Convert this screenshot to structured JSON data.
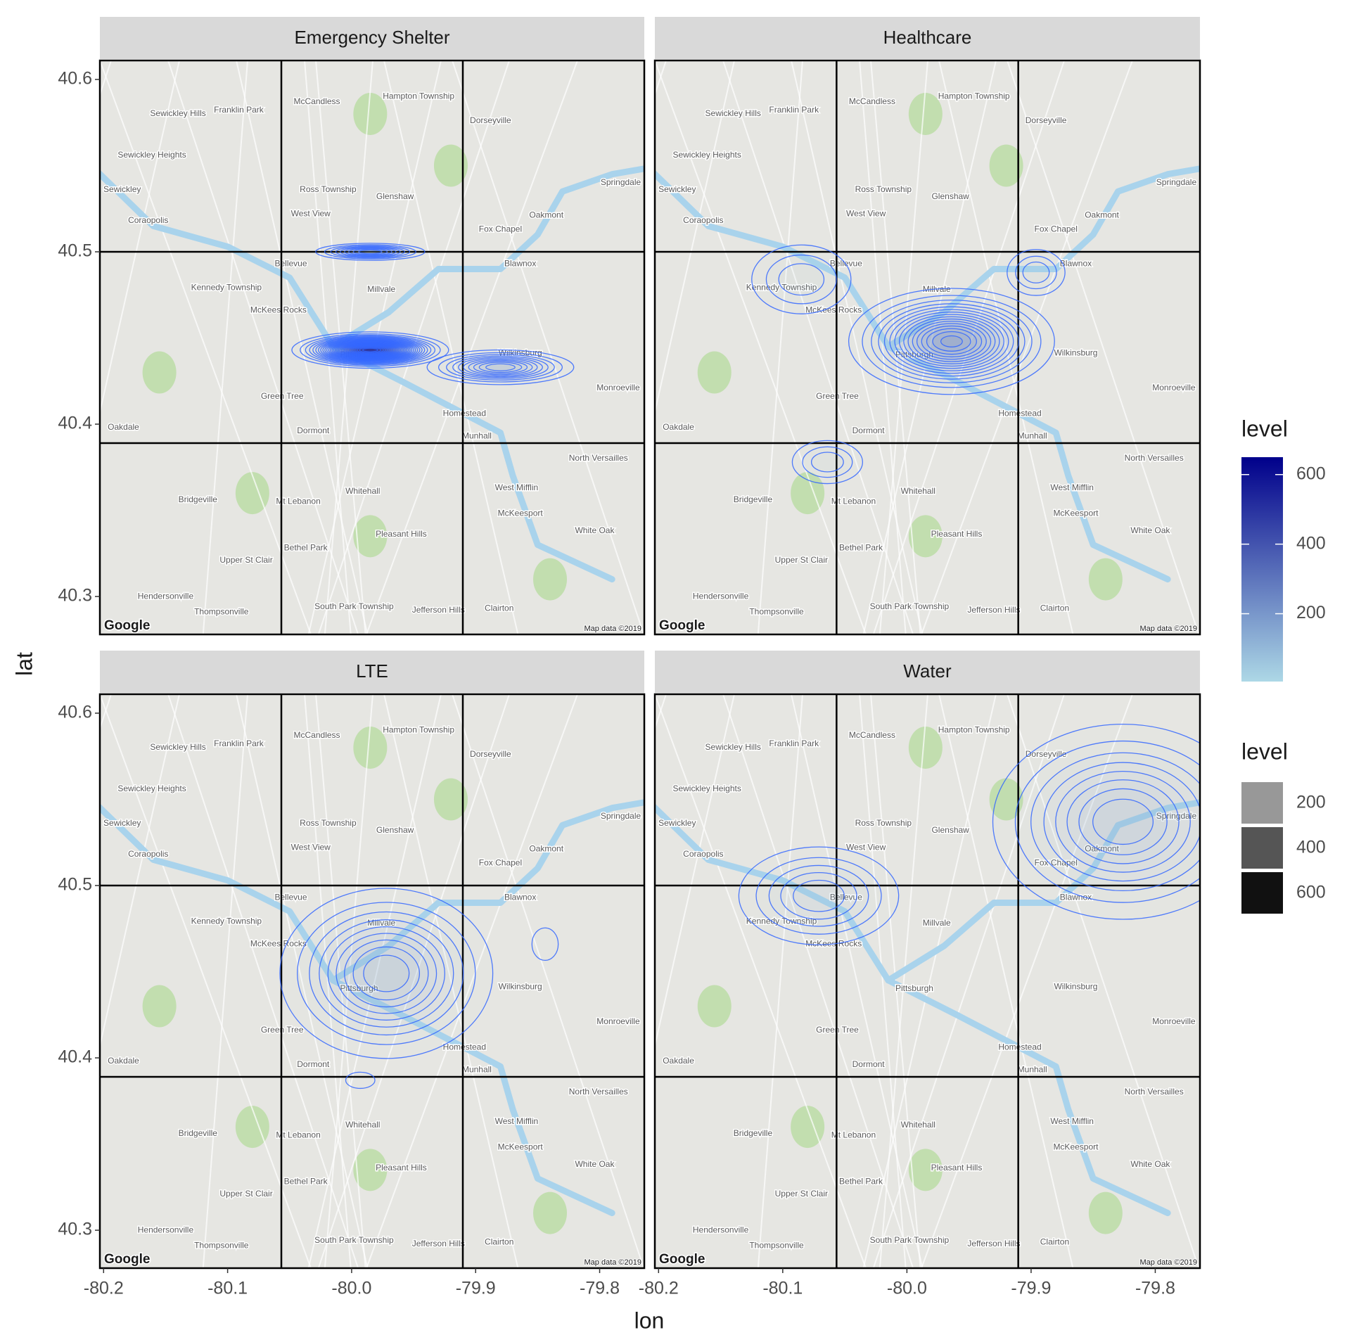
{
  "chart_data": {
    "type": "density2d",
    "x_label": "lon",
    "y_label": "lat",
    "xlim": [
      -80.203,
      -79.764
    ],
    "ylim": [
      40.278,
      40.611
    ],
    "xticks": [
      -80.2,
      -80.1,
      {
        "value": -80,
        "label": "-80.0"
      },
      -79.9,
      -79.8
    ],
    "yticks": [
      40.3,
      40.4,
      40.5,
      40.6
    ],
    "contour_step": 20,
    "line_color": "#3366ff",
    "fill_legend": {
      "title": "level",
      "lim": [
        5,
        650
      ],
      "ticks": [
        200,
        400,
        600
      ],
      "colors": [
        "#add8e6",
        "#00008b"
      ]
    },
    "alpha_legend": {
      "title": "level",
      "lim": [
        5,
        650
      ],
      "values": [
        200,
        400,
        600
      ],
      "alpha_range": [
        0.1,
        1
      ]
    },
    "map_logo": "Google",
    "map_credit": "Map data ©2019",
    "facets": [
      {
        "title": "Emergency Shelter",
        "peaks": [
          {
            "lon": -79.985,
            "lat": 40.443,
            "level": 640,
            "sx": 0.024,
            "sy": 0.004
          },
          {
            "lon": -79.985,
            "lat": 40.5,
            "level": 200,
            "sx": 0.0205,
            "sy": 0.0023
          },
          {
            "lon": -79.88,
            "lat": 40.433,
            "level": 220,
            "sx": 0.027,
            "sy": 0.0046
          }
        ]
      },
      {
        "title": "Healthcare",
        "peaks": [
          {
            "lon": -79.964,
            "lat": 40.448,
            "level": 330,
            "sx": 0.035,
            "sy": 0.013
          },
          {
            "lon": -80.064,
            "lat": 40.378,
            "level": 80,
            "sx": 0.017,
            "sy": 0.0075
          },
          {
            "lon": -80.085,
            "lat": 40.484,
            "level": 80,
            "sx": 0.024,
            "sy": 0.012
          },
          {
            "lon": -79.896,
            "lat": 40.488,
            "level": 80,
            "sx": 0.014,
            "sy": 0.008
          }
        ]
      },
      {
        "title": "LTE",
        "peaks": [
          {
            "lon": -79.972,
            "lat": 40.449,
            "level": 200,
            "sx": 0.04,
            "sy": 0.023
          },
          {
            "lon": -79.844,
            "lat": 40.466,
            "level": 40,
            "sx": 0.009,
            "sy": 0.008
          },
          {
            "lon": -79.993,
            "lat": 40.387,
            "level": 40,
            "sx": 0.01,
            "sy": 0.004
          }
        ]
      },
      {
        "title": "Water",
        "peaks": [
          {
            "lon": -79.826,
            "lat": 40.537,
            "level": 180,
            "sx": 0.05,
            "sy": 0.027
          },
          {
            "lon": -80.071,
            "lat": 40.494,
            "level": 120,
            "sx": 0.034,
            "sy": 0.015
          }
        ]
      }
    ],
    "places": [
      {
        "name": "Sewickley Hills",
        "lon": -80.14,
        "lat": 40.58
      },
      {
        "name": "Franklin Park",
        "lon": -80.091,
        "lat": 40.582
      },
      {
        "name": "McCandless",
        "lon": -80.028,
        "lat": 40.587
      },
      {
        "name": "Hampton Township",
        "lon": -79.946,
        "lat": 40.59
      },
      {
        "name": "Dorseyville",
        "lon": -79.888,
        "lat": 40.576
      },
      {
        "name": "Sewickley Heights",
        "lon": -80.161,
        "lat": 40.556
      },
      {
        "name": "Sewickley",
        "lon": -80.185,
        "lat": 40.536
      },
      {
        "name": "Ross Township",
        "lon": -80.019,
        "lat": 40.536
      },
      {
        "name": "Glenshaw",
        "lon": -79.965,
        "lat": 40.532
      },
      {
        "name": "West View",
        "lon": -80.033,
        "lat": 40.522
      },
      {
        "name": "Coraopolis",
        "lon": -80.164,
        "lat": 40.518
      },
      {
        "name": "Oakmont",
        "lon": -79.843,
        "lat": 40.521
      },
      {
        "name": "Fox Chapel",
        "lon": -79.88,
        "lat": 40.513
      },
      {
        "name": "Springdale",
        "lon": -79.783,
        "lat": 40.54
      },
      {
        "name": "Bellevue",
        "lon": -80.049,
        "lat": 40.493
      },
      {
        "name": "Blawnox",
        "lon": -79.864,
        "lat": 40.493
      },
      {
        "name": "Kennedy Township",
        "lon": -80.101,
        "lat": 40.479
      },
      {
        "name": "McKees Rocks",
        "lon": -80.059,
        "lat": 40.466
      },
      {
        "name": "Millvale",
        "lon": -79.976,
        "lat": 40.478
      },
      {
        "name": "Pittsburgh",
        "lon": -79.994,
        "lat": 40.44
      },
      {
        "name": "Wilkinsburg",
        "lon": -79.864,
        "lat": 40.441
      },
      {
        "name": "Green Tree",
        "lon": -80.056,
        "lat": 40.416
      },
      {
        "name": "Dormont",
        "lon": -80.031,
        "lat": 40.396
      },
      {
        "name": "Homestead",
        "lon": -79.909,
        "lat": 40.406
      },
      {
        "name": "Munhall",
        "lon": -79.899,
        "lat": 40.393
      },
      {
        "name": "Monroeville",
        "lon": -79.785,
        "lat": 40.421
      },
      {
        "name": "Oakdale",
        "lon": -80.184,
        "lat": 40.398
      },
      {
        "name": "North Versailles",
        "lon": -79.801,
        "lat": 40.38
      },
      {
        "name": "West Mifflin",
        "lon": -79.867,
        "lat": 40.363
      },
      {
        "name": "Bridgeville",
        "lon": -80.124,
        "lat": 40.356
      },
      {
        "name": "Mt Lebanon",
        "lon": -80.043,
        "lat": 40.355
      },
      {
        "name": "Whitehall",
        "lon": -79.991,
        "lat": 40.361
      },
      {
        "name": "McKeesport",
        "lon": -79.864,
        "lat": 40.348
      },
      {
        "name": "White Oak",
        "lon": -79.804,
        "lat": 40.338
      },
      {
        "name": "Bethel Park",
        "lon": -80.037,
        "lat": 40.328
      },
      {
        "name": "Pleasant Hills",
        "lon": -79.96,
        "lat": 40.336
      },
      {
        "name": "Upper St Clair",
        "lon": -80.085,
        "lat": 40.321
      },
      {
        "name": "Hendersonville",
        "lon": -80.15,
        "lat": 40.3
      },
      {
        "name": "Thompsonville",
        "lon": -80.105,
        "lat": 40.291
      },
      {
        "name": "South Park Township",
        "lon": -79.998,
        "lat": 40.294
      },
      {
        "name": "Jefferson Hills",
        "lon": -79.93,
        "lat": 40.292
      },
      {
        "name": "Clairton",
        "lon": -79.881,
        "lat": 40.293
      }
    ]
  }
}
